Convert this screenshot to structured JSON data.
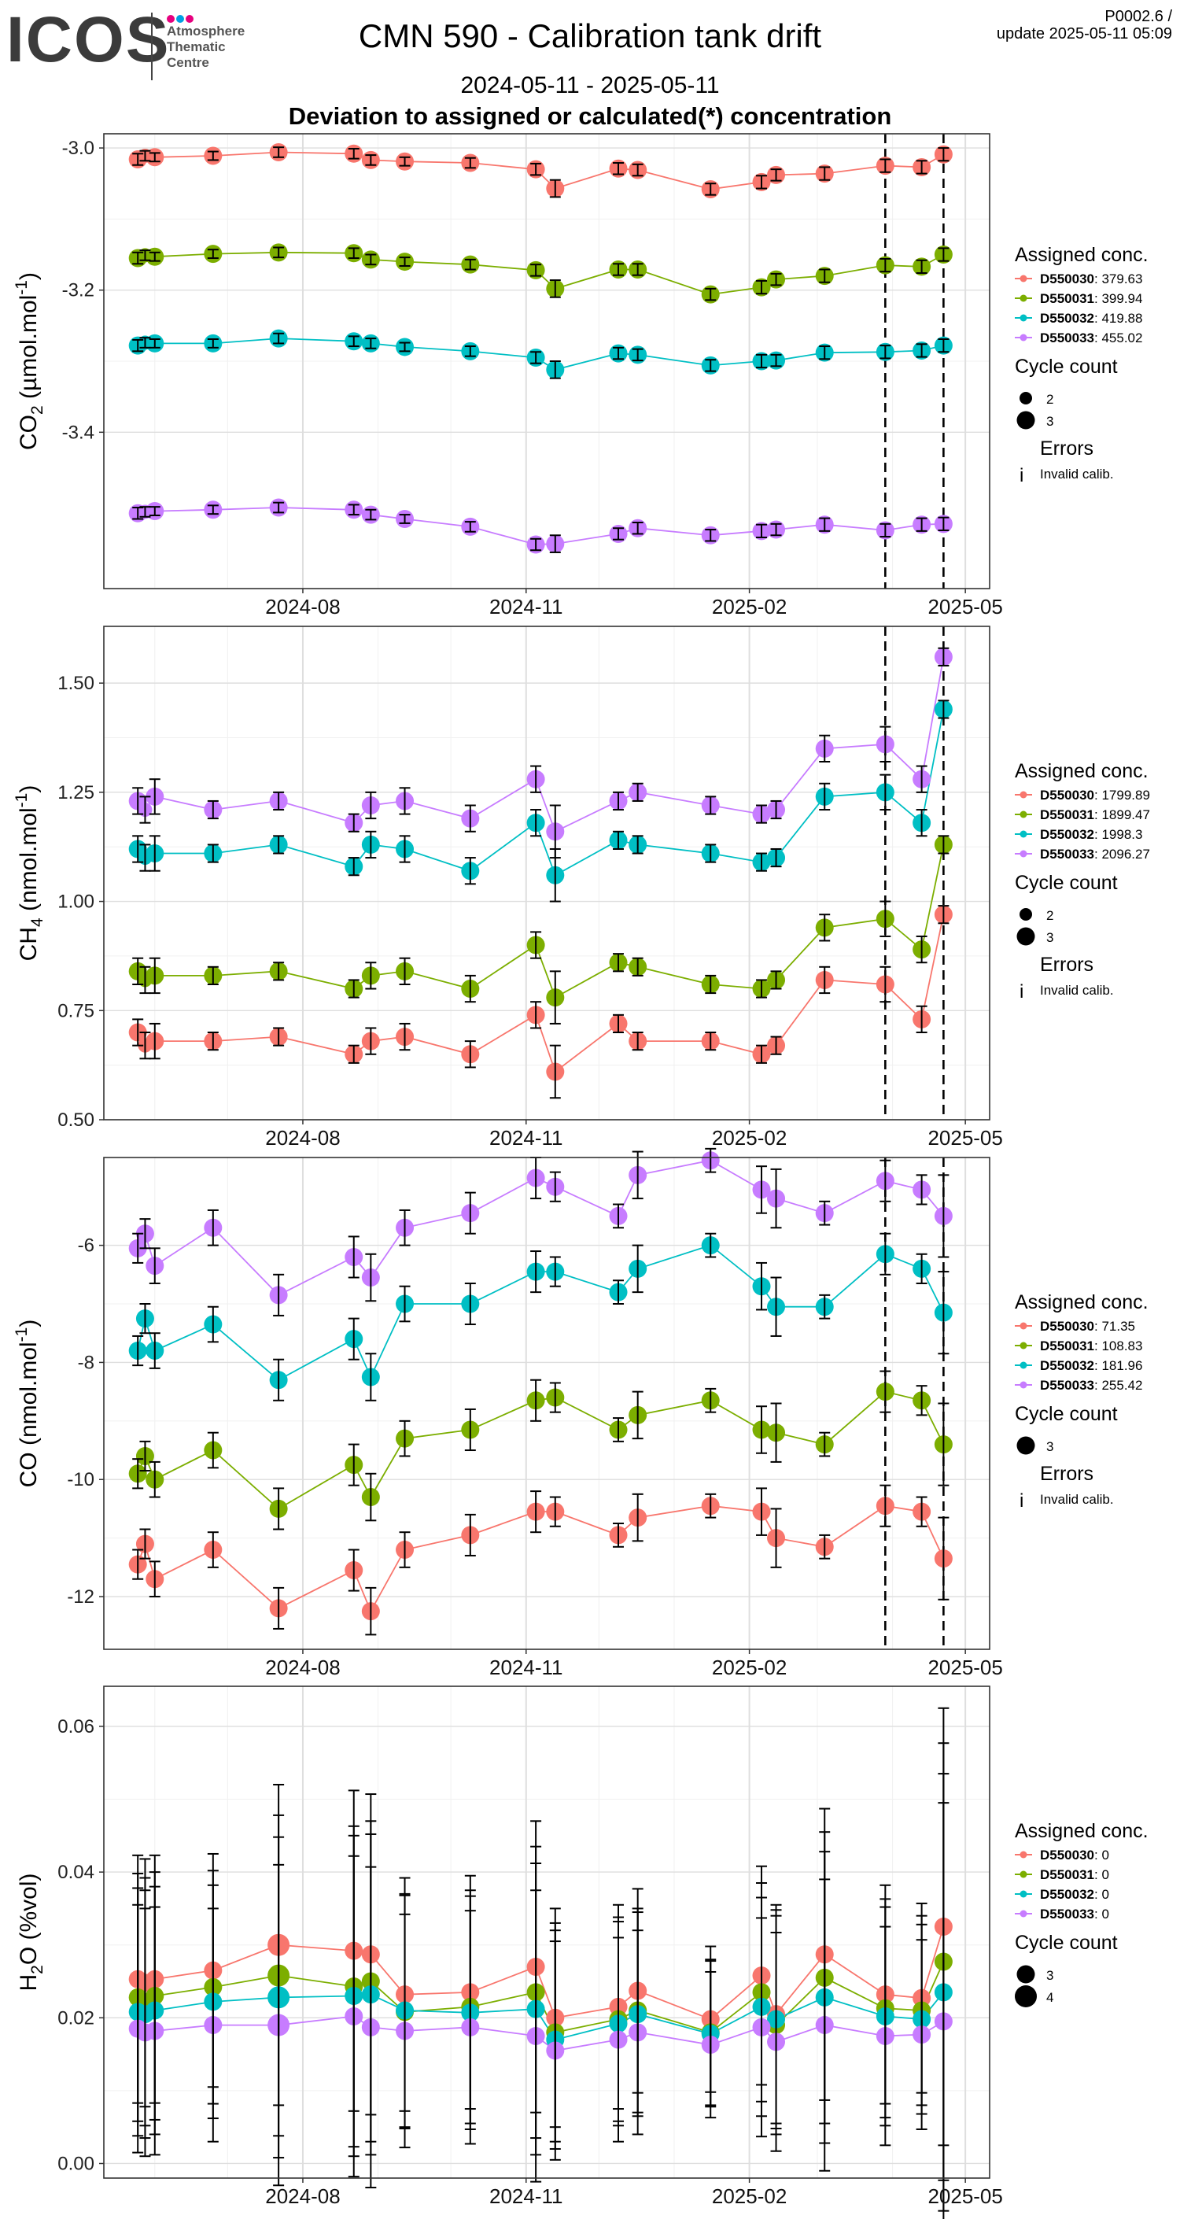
{
  "header": {
    "logo_text": "ICOS",
    "logo_sub": [
      "Atmosphere",
      "Thematic",
      "Centre"
    ],
    "title": "CMN 590 - Calibration tank drift",
    "date_range": "2024-05-11 - 2025-05-11",
    "subtitle": "Deviation to assigned or calculated(*) concentration",
    "page_id": "P0002.6 /",
    "update": "update  2025-05-11 05:09"
  },
  "colors": {
    "D550030": "#F8766D",
    "D550031": "#7CAE00",
    "D550032": "#00BFC4",
    "D550033": "#C77CFF"
  },
  "chart_data": [
    {
      "type": "line",
      "ylabel": "CO",
      "ylabel_sub": "2",
      "ylabel_unit": " (µmol.mol",
      "ylabel_exp": "-1",
      "ylabel_end": ")",
      "ylim": [
        -3.62,
        -2.98
      ],
      "yticks": [
        -3.0,
        -3.2,
        -3.4
      ],
      "ytick_labels": [
        "-3.0",
        "-3.2",
        "-3.4"
      ],
      "xlim": [
        "2024-05-11",
        "2025-05-11"
      ],
      "xticks": [
        "2024-08-01",
        "2024-11-01",
        "2025-02-01",
        "2025-05-01"
      ],
      "xtick_labels": [
        "2024-08",
        "2024-11",
        "2025-02",
        "2025-05"
      ],
      "vlines": [
        "2025-03-29",
        "2025-04-22"
      ],
      "legend": {
        "title": "Assigned conc.",
        "entries": [
          {
            "name": "D550030",
            "value": "379.63"
          },
          {
            "name": "D550031",
            "value": "399.94"
          },
          {
            "name": "D550032",
            "value": "419.88"
          },
          {
            "name": "D550033",
            "value": "455.02"
          }
        ],
        "cycle_title": "Cycle count",
        "cycles": [
          "2",
          "3"
        ],
        "errors_title": "Errors",
        "errors_label": "Invalid calib."
      },
      "dates": [
        "2024-05-25",
        "2024-05-28",
        "2024-06-01",
        "2024-06-25",
        "2024-07-22",
        "2024-08-22",
        "2024-08-29",
        "2024-09-12",
        "2024-10-09",
        "2024-11-05",
        "2024-11-13",
        "2024-12-09",
        "2024-12-17",
        "2025-01-16",
        "2025-02-06",
        "2025-02-12",
        "2025-03-04",
        "2025-03-29",
        "2025-04-13",
        "2025-04-22"
      ],
      "series": [
        {
          "name": "D550030",
          "values": [
            -3.016,
            -3.011,
            -3.013,
            -3.011,
            -3.006,
            -3.008,
            -3.017,
            -3.019,
            -3.021,
            -3.03,
            -3.057,
            -3.029,
            -3.031,
            -3.058,
            -3.048,
            -3.038,
            -3.036,
            -3.025,
            -3.027,
            -3.009
          ]
        },
        {
          "name": "D550031",
          "values": [
            -3.155,
            -3.151,
            -3.153,
            -3.149,
            -3.147,
            -3.148,
            -3.157,
            -3.16,
            -3.164,
            -3.172,
            -3.198,
            -3.171,
            -3.171,
            -3.206,
            -3.196,
            -3.185,
            -3.18,
            -3.165,
            -3.167,
            -3.15
          ]
        },
        {
          "name": "D550032",
          "values": [
            -3.278,
            -3.274,
            -3.275,
            -3.275,
            -3.268,
            -3.272,
            -3.275,
            -3.28,
            -3.286,
            -3.295,
            -3.312,
            -3.289,
            -3.291,
            -3.306,
            -3.3,
            -3.299,
            -3.288,
            -3.287,
            -3.285,
            -3.278
          ]
        },
        {
          "name": "D550033",
          "values": [
            -3.514,
            -3.512,
            -3.511,
            -3.509,
            -3.506,
            -3.509,
            -3.516,
            -3.522,
            -3.533,
            -3.558,
            -3.557,
            -3.543,
            -3.535,
            -3.545,
            -3.539,
            -3.537,
            -3.53,
            -3.538,
            -3.53,
            -3.529
          ]
        }
      ],
      "errors": [
        0.008,
        0.007,
        0.006,
        0.006,
        0.007,
        0.007,
        0.007,
        0.006,
        0.007,
        0.008,
        0.012,
        0.008,
        0.008,
        0.008,
        0.009,
        0.008,
        0.009,
        0.009,
        0.009,
        0.009
      ],
      "cycle_counts": [
        3,
        2,
        3,
        3,
        3,
        3,
        3,
        3,
        3,
        3,
        3,
        3,
        3,
        3,
        3,
        3,
        3,
        3,
        3,
        3
      ]
    },
    {
      "type": "line",
      "ylabel": "CH",
      "ylabel_sub": "4",
      "ylabel_unit": " (nmol.mol",
      "ylabel_exp": "-1",
      "ylabel_end": ")",
      "ylim": [
        0.5,
        1.63
      ],
      "yticks": [
        0.5,
        0.75,
        1.0,
        1.25,
        1.5
      ],
      "ytick_labels": [
        "0.50",
        "0.75",
        "1.00",
        "1.25",
        "1.50"
      ],
      "xlim": [
        "2024-05-11",
        "2025-05-11"
      ],
      "xticks": [
        "2024-08-01",
        "2024-11-01",
        "2025-02-01",
        "2025-05-01"
      ],
      "xtick_labels": [
        "2024-08",
        "2024-11",
        "2025-02",
        "2025-05"
      ],
      "vlines": [
        "2025-03-29",
        "2025-04-22"
      ],
      "legend": {
        "title": "Assigned conc.",
        "entries": [
          {
            "name": "D550030",
            "value": "1799.89"
          },
          {
            "name": "D550031",
            "value": "1899.47"
          },
          {
            "name": "D550032",
            "value": "1998.3"
          },
          {
            "name": "D550033",
            "value": "2096.27"
          }
        ],
        "cycle_title": "Cycle count",
        "cycles": [
          "2",
          "3"
        ],
        "errors_title": "Errors",
        "errors_label": "Invalid calib."
      },
      "dates": [
        "2024-05-25",
        "2024-05-28",
        "2024-06-01",
        "2024-06-25",
        "2024-07-22",
        "2024-08-22",
        "2024-08-29",
        "2024-09-12",
        "2024-10-09",
        "2024-11-05",
        "2024-11-13",
        "2024-12-09",
        "2024-12-17",
        "2025-01-16",
        "2025-02-06",
        "2025-02-12",
        "2025-03-04",
        "2025-03-29",
        "2025-04-13",
        "2025-04-22"
      ],
      "series": [
        {
          "name": "D550030",
          "values": [
            0.7,
            0.67,
            0.68,
            0.68,
            0.69,
            0.65,
            0.68,
            0.69,
            0.65,
            0.74,
            0.61,
            0.72,
            0.68,
            0.68,
            0.65,
            0.67,
            0.82,
            0.81,
            0.73,
            0.97
          ]
        },
        {
          "name": "D550031",
          "values": [
            0.84,
            0.82,
            0.83,
            0.83,
            0.84,
            0.8,
            0.83,
            0.84,
            0.8,
            0.9,
            0.78,
            0.86,
            0.85,
            0.81,
            0.8,
            0.82,
            0.94,
            0.96,
            0.89,
            1.13
          ]
        },
        {
          "name": "D550032",
          "values": [
            1.12,
            1.1,
            1.11,
            1.11,
            1.13,
            1.08,
            1.13,
            1.12,
            1.07,
            1.18,
            1.06,
            1.14,
            1.13,
            1.11,
            1.09,
            1.1,
            1.24,
            1.25,
            1.18,
            1.44
          ]
        },
        {
          "name": "D550033",
          "values": [
            1.23,
            1.21,
            1.24,
            1.21,
            1.23,
            1.18,
            1.22,
            1.23,
            1.19,
            1.28,
            1.16,
            1.23,
            1.25,
            1.22,
            1.2,
            1.21,
            1.35,
            1.36,
            1.28,
            1.56
          ]
        }
      ],
      "errors": [
        0.03,
        0.03,
        0.04,
        0.02,
        0.02,
        0.02,
        0.03,
        0.03,
        0.03,
        0.03,
        0.06,
        0.02,
        0.02,
        0.02,
        0.02,
        0.02,
        0.03,
        0.04,
        0.03,
        0.02
      ],
      "cycle_counts": [
        3,
        2,
        3,
        3,
        3,
        3,
        3,
        3,
        3,
        3,
        3,
        3,
        3,
        3,
        3,
        3,
        3,
        3,
        3,
        3
      ]
    },
    {
      "type": "line",
      "ylabel": "CO",
      "ylabel_sub": "",
      "ylabel_unit": " (nmol.mol",
      "ylabel_exp": "-1",
      "ylabel_end": ")",
      "ylim": [
        -12.9,
        -4.5
      ],
      "yticks": [
        -6,
        -8,
        -10,
        -12
      ],
      "ytick_labels": [
        "-6",
        "-8",
        "-10",
        "-12"
      ],
      "xlim": [
        "2024-05-11",
        "2025-05-11"
      ],
      "xticks": [
        "2024-08-01",
        "2024-11-01",
        "2025-02-01",
        "2025-05-01"
      ],
      "xtick_labels": [
        "2024-08",
        "2024-11",
        "2025-02",
        "2025-05"
      ],
      "vlines": [
        "2025-03-29",
        "2025-04-22"
      ],
      "legend": {
        "title": "Assigned conc.",
        "entries": [
          {
            "name": "D550030",
            "value": "71.35"
          },
          {
            "name": "D550031",
            "value": "108.83"
          },
          {
            "name": "D550032",
            "value": "181.96"
          },
          {
            "name": "D550033",
            "value": "255.42"
          }
        ],
        "cycle_title": "Cycle count",
        "cycles": [
          "3"
        ],
        "errors_title": "Errors",
        "errors_label": "Invalid calib."
      },
      "dates": [
        "2024-05-25",
        "2024-05-28",
        "2024-06-01",
        "2024-06-25",
        "2024-07-22",
        "2024-08-22",
        "2024-08-29",
        "2024-09-12",
        "2024-10-09",
        "2024-11-05",
        "2024-11-13",
        "2024-12-09",
        "2024-12-17",
        "2025-01-16",
        "2025-02-06",
        "2025-02-12",
        "2025-03-04",
        "2025-03-29",
        "2025-04-13",
        "2025-04-22"
      ],
      "series": [
        {
          "name": "D550030",
          "values": [
            -11.45,
            -11.1,
            -11.7,
            -11.2,
            -12.2,
            -11.55,
            -12.25,
            -11.2,
            -10.95,
            -10.55,
            -10.55,
            -10.95,
            -10.65,
            -10.45,
            -10.55,
            -11.0,
            -11.15,
            -10.45,
            -10.55,
            -11.35
          ]
        },
        {
          "name": "D550031",
          "values": [
            -9.9,
            -9.6,
            -10.0,
            -9.5,
            -10.5,
            -9.75,
            -10.3,
            -9.3,
            -9.15,
            -8.65,
            -8.6,
            -9.15,
            -8.9,
            -8.65,
            -9.15,
            -9.2,
            -9.4,
            -8.5,
            -8.65,
            -9.4
          ]
        },
        {
          "name": "D550032",
          "values": [
            -7.8,
            -7.25,
            -7.8,
            -7.35,
            -8.3,
            -7.6,
            -8.25,
            -7.0,
            -7.0,
            -6.45,
            -6.45,
            -6.8,
            -6.4,
            -6.0,
            -6.7,
            -7.05,
            -7.05,
            -6.15,
            -6.4,
            -7.15
          ]
        },
        {
          "name": "D550033",
          "values": [
            -6.05,
            -5.8,
            -6.35,
            -5.7,
            -6.85,
            -6.2,
            -6.55,
            -5.7,
            -5.45,
            -4.85,
            -5.0,
            -5.5,
            -4.8,
            -4.55,
            -5.05,
            -5.2,
            -5.45,
            -4.9,
            -5.05,
            -5.5
          ]
        }
      ],
      "errors": [
        0.25,
        0.25,
        0.3,
        0.3,
        0.35,
        0.35,
        0.4,
        0.3,
        0.35,
        0.35,
        0.25,
        0.2,
        0.4,
        0.2,
        0.4,
        0.5,
        0.2,
        0.35,
        0.25,
        0.7
      ],
      "cycle_counts": [
        3,
        3,
        3,
        3,
        3,
        3,
        3,
        3,
        3,
        3,
        3,
        3,
        3,
        3,
        3,
        3,
        3,
        3,
        3,
        3
      ]
    },
    {
      "type": "line",
      "ylabel": "H",
      "ylabel_sub": "2",
      "ylabel_unit": "O (%vol)",
      "ylabel_exp": "",
      "ylabel_end": "",
      "ylim": [
        -0.002,
        0.0655
      ],
      "yticks": [
        0.0,
        0.02,
        0.04,
        0.06
      ],
      "ytick_labels": [
        "0.00",
        "0.02",
        "0.04",
        "0.06"
      ],
      "xlim": [
        "2024-05-11",
        "2025-05-11"
      ],
      "xticks": [
        "2024-08-01",
        "2024-11-01",
        "2025-02-01",
        "2025-05-01"
      ],
      "xtick_labels": [
        "2024-08",
        "2024-11",
        "2025-02",
        "2025-05"
      ],
      "vlines": [],
      "legend": {
        "title": "Assigned conc.",
        "entries": [
          {
            "name": "D550030",
            "value": "0"
          },
          {
            "name": "D550031",
            "value": "0"
          },
          {
            "name": "D550032",
            "value": "0"
          },
          {
            "name": "D550033",
            "value": "0"
          }
        ],
        "cycle_title": "Cycle count",
        "cycles": [
          "3",
          "4"
        ],
        "errors_title": "",
        "errors_label": ""
      },
      "dates": [
        "2024-05-25",
        "2024-05-28",
        "2024-06-01",
        "2024-06-25",
        "2024-07-22",
        "2024-08-22",
        "2024-08-29",
        "2024-09-12",
        "2024-10-09",
        "2024-11-05",
        "2024-11-13",
        "2024-12-09",
        "2024-12-17",
        "2025-01-16",
        "2025-02-06",
        "2025-02-12",
        "2025-03-04",
        "2025-03-29",
        "2025-04-13",
        "2025-04-22"
      ],
      "series": [
        {
          "name": "D550030",
          "values": [
            0.0253,
            0.0248,
            0.0253,
            0.0265,
            0.03,
            0.0292,
            0.0287,
            0.0232,
            0.0235,
            0.027,
            0.02,
            0.0215,
            0.0237,
            0.0198,
            0.0258,
            0.0205,
            0.0287,
            0.0232,
            0.0227,
            0.0325
          ]
        },
        {
          "name": "D550031",
          "values": [
            0.0228,
            0.0222,
            0.023,
            0.0242,
            0.0258,
            0.0243,
            0.025,
            0.0208,
            0.0215,
            0.0235,
            0.018,
            0.0198,
            0.021,
            0.018,
            0.0235,
            0.019,
            0.0255,
            0.0213,
            0.021,
            0.0277
          ]
        },
        {
          "name": "D550032",
          "values": [
            0.0208,
            0.0205,
            0.021,
            0.0222,
            0.0228,
            0.023,
            0.0232,
            0.021,
            0.0207,
            0.0212,
            0.017,
            0.0192,
            0.0205,
            0.0178,
            0.0215,
            0.0198,
            0.0228,
            0.0202,
            0.0198,
            0.0235
          ]
        },
        {
          "name": "D550033",
          "values": [
            0.0185,
            0.018,
            0.0182,
            0.019,
            0.019,
            0.0202,
            0.0187,
            0.0182,
            0.0187,
            0.0175,
            0.0155,
            0.017,
            0.018,
            0.0163,
            0.0187,
            0.0167,
            0.019,
            0.0175,
            0.0177,
            0.0195
          ]
        }
      ],
      "errors": [
        0.017,
        0.017,
        0.017,
        0.016,
        0.022,
        0.022,
        0.022,
        0.016,
        0.016,
        0.02,
        0.015,
        0.014,
        0.014,
        0.01,
        0.015,
        0.015,
        0.02,
        0.015,
        0.013,
        0.03
      ],
      "cycle_counts": [
        3,
        3,
        3,
        3,
        4,
        3,
        3,
        3,
        3,
        3,
        3,
        3,
        3,
        3,
        3,
        3,
        3,
        3,
        3,
        3
      ]
    }
  ]
}
